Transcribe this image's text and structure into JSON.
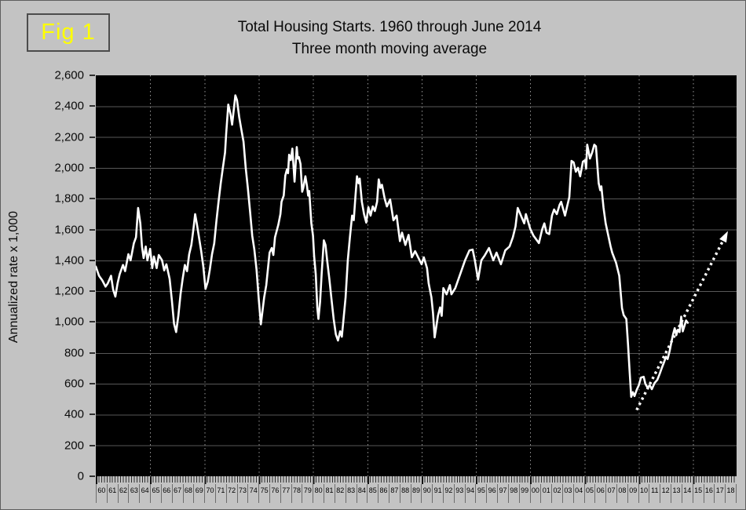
{
  "figure_label": "Fig 1",
  "title": {
    "line1": "Total Housing Starts. 1960 through June 2014",
    "line2": "Three month moving average"
  },
  "y_axis_title": "Annualized rate x 1,000",
  "colors": {
    "page_background": "#c3c3c3",
    "plot_background": "#000000",
    "series_line": "#ffffff",
    "projection_line": "#ffffff",
    "h_gridline": "#585858",
    "v_gridline": "#989898",
    "figure_label_text": "#ffff00",
    "figure_label_border": "#4c4c4c",
    "text": "#0a0a0a",
    "x_separator": "#6d6d6d"
  },
  "chart_data": {
    "type": "line",
    "title": "Total Housing Starts. 1960 through June 2014",
    "subtitle": "Three month moving average",
    "ylabel": "Annualized rate x 1,000",
    "xlabel": "",
    "ylim": [
      0,
      2600
    ],
    "xlim_years": [
      1960,
      2019
    ],
    "grid": {
      "h_interval": 200,
      "v_gridline_years": [
        1965,
        1970,
        1975,
        1980,
        1985,
        1990,
        1995,
        2000,
        2005,
        2010,
        2015
      ]
    },
    "y_tick_values": [
      0,
      200,
      400,
      600,
      800,
      1000,
      1200,
      1400,
      1600,
      1800,
      2000,
      2200,
      2400,
      2600
    ],
    "y_tick_labels": [
      "0",
      "200",
      "400",
      "600",
      "800",
      "1,000",
      "1,200",
      "1,400",
      "1,600",
      "1,800",
      "2,000",
      "2,200",
      "2,400",
      "2,600"
    ],
    "x_tick_labels": [
      "60",
      "61",
      "62",
      "63",
      "64",
      "65",
      "66",
      "67",
      "68",
      "69",
      "70",
      "71",
      "72",
      "73",
      "74",
      "75",
      "76",
      "77",
      "78",
      "79",
      "80",
      "81",
      "82",
      "83",
      "84",
      "85",
      "86",
      "87",
      "88",
      "89",
      "90",
      "91",
      "92",
      "93",
      "94",
      "95",
      "96",
      "97",
      "98",
      "99",
      "00",
      "01",
      "02",
      "03",
      "04",
      "05",
      "06",
      "07",
      "08",
      "09",
      "10",
      "11",
      "12",
      "13",
      "14",
      "15",
      "16",
      "17",
      "18"
    ],
    "series": [
      {
        "name": "Total housing starts, three month moving average (annualized rate x 1,000)",
        "style": "solid",
        "points": [
          [
            1960.0,
            1360
          ],
          [
            1960.3,
            1300
          ],
          [
            1960.6,
            1270
          ],
          [
            1960.9,
            1230
          ],
          [
            1961.1,
            1250
          ],
          [
            1961.4,
            1300
          ],
          [
            1961.6,
            1210
          ],
          [
            1961.8,
            1165
          ],
          [
            1962.0,
            1250
          ],
          [
            1962.2,
            1310
          ],
          [
            1962.5,
            1370
          ],
          [
            1962.7,
            1330
          ],
          [
            1963.0,
            1440
          ],
          [
            1963.2,
            1400
          ],
          [
            1963.5,
            1510
          ],
          [
            1963.7,
            1550
          ],
          [
            1963.9,
            1740
          ],
          [
            1964.1,
            1640
          ],
          [
            1964.25,
            1490
          ],
          [
            1964.4,
            1415
          ],
          [
            1964.6,
            1490
          ],
          [
            1964.75,
            1400
          ],
          [
            1965.0,
            1475
          ],
          [
            1965.2,
            1350
          ],
          [
            1965.35,
            1425
          ],
          [
            1965.6,
            1350
          ],
          [
            1965.8,
            1435
          ],
          [
            1966.1,
            1400
          ],
          [
            1966.3,
            1335
          ],
          [
            1966.5,
            1375
          ],
          [
            1966.8,
            1280
          ],
          [
            1967.0,
            1145
          ],
          [
            1967.2,
            990
          ],
          [
            1967.4,
            935
          ],
          [
            1967.6,
            1040
          ],
          [
            1967.8,
            1180
          ],
          [
            1968.0,
            1280
          ],
          [
            1968.2,
            1370
          ],
          [
            1968.4,
            1330
          ],
          [
            1968.6,
            1440
          ],
          [
            1968.8,
            1500
          ],
          [
            1969.0,
            1610
          ],
          [
            1969.15,
            1700
          ],
          [
            1969.3,
            1640
          ],
          [
            1969.5,
            1550
          ],
          [
            1969.7,
            1460
          ],
          [
            1969.9,
            1360
          ],
          [
            1970.1,
            1215
          ],
          [
            1970.3,
            1260
          ],
          [
            1970.5,
            1340
          ],
          [
            1970.7,
            1440
          ],
          [
            1970.9,
            1510
          ],
          [
            1971.1,
            1650
          ],
          [
            1971.3,
            1780
          ],
          [
            1971.5,
            1900
          ],
          [
            1971.7,
            2000
          ],
          [
            1971.9,
            2100
          ],
          [
            1972.0,
            2220
          ],
          [
            1972.2,
            2410
          ],
          [
            1972.4,
            2350
          ],
          [
            1972.55,
            2280
          ],
          [
            1972.85,
            2470
          ],
          [
            1973.0,
            2440
          ],
          [
            1973.2,
            2330
          ],
          [
            1973.4,
            2250
          ],
          [
            1973.6,
            2170
          ],
          [
            1973.8,
            2000
          ],
          [
            1974.0,
            1870
          ],
          [
            1974.2,
            1720
          ],
          [
            1974.4,
            1560
          ],
          [
            1974.6,
            1470
          ],
          [
            1974.8,
            1340
          ],
          [
            1975.0,
            1150
          ],
          [
            1975.2,
            985
          ],
          [
            1975.5,
            1160
          ],
          [
            1975.7,
            1240
          ],
          [
            1976.0,
            1450
          ],
          [
            1976.2,
            1480
          ],
          [
            1976.35,
            1435
          ],
          [
            1976.5,
            1550
          ],
          [
            1976.8,
            1630
          ],
          [
            1977.0,
            1700
          ],
          [
            1977.1,
            1780
          ],
          [
            1977.3,
            1820
          ],
          [
            1977.45,
            1950
          ],
          [
            1977.6,
            1990
          ],
          [
            1977.7,
            1965
          ],
          [
            1977.8,
            2085
          ],
          [
            1977.95,
            2050
          ],
          [
            1978.1,
            2125
          ],
          [
            1978.3,
            1910
          ],
          [
            1978.5,
            2135
          ],
          [
            1978.6,
            2060
          ],
          [
            1978.7,
            2070
          ],
          [
            1978.85,
            2025
          ],
          [
            1979.0,
            1845
          ],
          [
            1979.1,
            1870
          ],
          [
            1979.3,
            1945
          ],
          [
            1979.45,
            1880
          ],
          [
            1979.55,
            1820
          ],
          [
            1979.65,
            1850
          ],
          [
            1979.75,
            1740
          ],
          [
            1979.85,
            1640
          ],
          [
            1980.0,
            1560
          ],
          [
            1980.1,
            1430
          ],
          [
            1980.25,
            1310
          ],
          [
            1980.4,
            1090
          ],
          [
            1980.5,
            1020
          ],
          [
            1980.65,
            1130
          ],
          [
            1980.8,
            1320
          ],
          [
            1981.0,
            1530
          ],
          [
            1981.15,
            1500
          ],
          [
            1981.3,
            1400
          ],
          [
            1981.5,
            1280
          ],
          [
            1981.7,
            1150
          ],
          [
            1981.9,
            1020
          ],
          [
            1982.1,
            920
          ],
          [
            1982.3,
            880
          ],
          [
            1982.5,
            940
          ],
          [
            1982.65,
            905
          ],
          [
            1982.8,
            1010
          ],
          [
            1983.0,
            1160
          ],
          [
            1983.2,
            1400
          ],
          [
            1983.4,
            1550
          ],
          [
            1983.6,
            1690
          ],
          [
            1983.75,
            1660
          ],
          [
            1983.9,
            1805
          ],
          [
            1984.05,
            1945
          ],
          [
            1984.2,
            1900
          ],
          [
            1984.3,
            1930
          ],
          [
            1984.5,
            1780
          ],
          [
            1984.7,
            1700
          ],
          [
            1984.9,
            1645
          ],
          [
            1985.1,
            1745
          ],
          [
            1985.3,
            1690
          ],
          [
            1985.5,
            1750
          ],
          [
            1985.7,
            1720
          ],
          [
            1985.9,
            1780
          ],
          [
            1986.05,
            1925
          ],
          [
            1986.2,
            1870
          ],
          [
            1986.35,
            1890
          ],
          [
            1986.6,
            1800
          ],
          [
            1986.8,
            1750
          ],
          [
            1987.1,
            1795
          ],
          [
            1987.4,
            1660
          ],
          [
            1987.7,
            1690
          ],
          [
            1988.0,
            1525
          ],
          [
            1988.2,
            1580
          ],
          [
            1988.5,
            1500
          ],
          [
            1988.8,
            1565
          ],
          [
            1989.1,
            1420
          ],
          [
            1989.4,
            1460
          ],
          [
            1990.0,
            1375
          ],
          [
            1990.2,
            1420
          ],
          [
            1990.5,
            1350
          ],
          [
            1990.65,
            1250
          ],
          [
            1990.9,
            1160
          ],
          [
            1991.05,
            1060
          ],
          [
            1991.2,
            900
          ],
          [
            1991.5,
            1040
          ],
          [
            1991.7,
            1095
          ],
          [
            1991.85,
            1040
          ],
          [
            1992.0,
            1220
          ],
          [
            1992.3,
            1180
          ],
          [
            1992.6,
            1240
          ],
          [
            1992.75,
            1180
          ],
          [
            1993.1,
            1220
          ],
          [
            1993.6,
            1320
          ],
          [
            1994.0,
            1400
          ],
          [
            1994.4,
            1465
          ],
          [
            1994.7,
            1470
          ],
          [
            1994.9,
            1400
          ],
          [
            1995.2,
            1275
          ],
          [
            1995.5,
            1400
          ],
          [
            1995.8,
            1430
          ],
          [
            1996.2,
            1480
          ],
          [
            1996.6,
            1400
          ],
          [
            1996.9,
            1450
          ],
          [
            1997.3,
            1375
          ],
          [
            1997.7,
            1465
          ],
          [
            1998.1,
            1490
          ],
          [
            1998.4,
            1550
          ],
          [
            1998.65,
            1620
          ],
          [
            1998.85,
            1740
          ],
          [
            1999.2,
            1680
          ],
          [
            1999.45,
            1640
          ],
          [
            1999.6,
            1700
          ],
          [
            2000.0,
            1605
          ],
          [
            2000.3,
            1560
          ],
          [
            2000.8,
            1512
          ],
          [
            2001.1,
            1600
          ],
          [
            2001.3,
            1640
          ],
          [
            2001.5,
            1580
          ],
          [
            2001.75,
            1570
          ],
          [
            2002.0,
            1690
          ],
          [
            2002.2,
            1730
          ],
          [
            2002.45,
            1700
          ],
          [
            2002.7,
            1760
          ],
          [
            2002.85,
            1780
          ],
          [
            2003.2,
            1690
          ],
          [
            2003.4,
            1750
          ],
          [
            2003.6,
            1810
          ],
          [
            2003.8,
            2045
          ],
          [
            2004.0,
            2035
          ],
          [
            2004.2,
            1975
          ],
          [
            2004.4,
            2000
          ],
          [
            2004.6,
            1945
          ],
          [
            2004.85,
            2040
          ],
          [
            2005.05,
            2050
          ],
          [
            2005.15,
            1995
          ],
          [
            2005.25,
            2150
          ],
          [
            2005.5,
            2060
          ],
          [
            2005.7,
            2100
          ],
          [
            2005.9,
            2150
          ],
          [
            2006.05,
            2140
          ],
          [
            2006.3,
            1900
          ],
          [
            2006.45,
            1855
          ],
          [
            2006.55,
            1880
          ],
          [
            2006.75,
            1740
          ],
          [
            2006.95,
            1640
          ],
          [
            2007.1,
            1590
          ],
          [
            2007.4,
            1490
          ],
          [
            2007.55,
            1450
          ],
          [
            2007.9,
            1385
          ],
          [
            2008.2,
            1300
          ],
          [
            2008.45,
            1090
          ],
          [
            2008.6,
            1045
          ],
          [
            2008.85,
            1020
          ],
          [
            2009.0,
            860
          ],
          [
            2009.15,
            680
          ],
          [
            2009.3,
            515
          ],
          [
            2009.45,
            545
          ],
          [
            2009.6,
            520
          ],
          [
            2009.8,
            560
          ],
          [
            2010.0,
            590
          ],
          [
            2010.2,
            640
          ],
          [
            2010.45,
            645
          ],
          [
            2010.6,
            600
          ],
          [
            2010.8,
            575
          ],
          [
            2011.0,
            590
          ],
          [
            2011.2,
            565
          ],
          [
            2011.45,
            605
          ],
          [
            2011.7,
            625
          ],
          [
            2011.9,
            660
          ],
          [
            2012.1,
            700
          ],
          [
            2012.35,
            745
          ],
          [
            2012.5,
            775
          ],
          [
            2012.65,
            760
          ],
          [
            2012.85,
            815
          ],
          [
            2013.0,
            870
          ],
          [
            2013.15,
            920
          ],
          [
            2013.3,
            960
          ],
          [
            2013.45,
            915
          ],
          [
            2013.6,
            950
          ],
          [
            2013.75,
            935
          ],
          [
            2013.9,
            1035
          ],
          [
            2014.05,
            940
          ],
          [
            2014.2,
            975
          ],
          [
            2014.35,
            1010
          ],
          [
            2014.5,
            995
          ]
        ]
      }
    ],
    "projection": {
      "name": "dotted projection trendline with arrowhead",
      "style": "dotted-arrow",
      "from": [
        2009.8,
        430
      ],
      "to": [
        2018.2,
        1590
      ]
    }
  }
}
